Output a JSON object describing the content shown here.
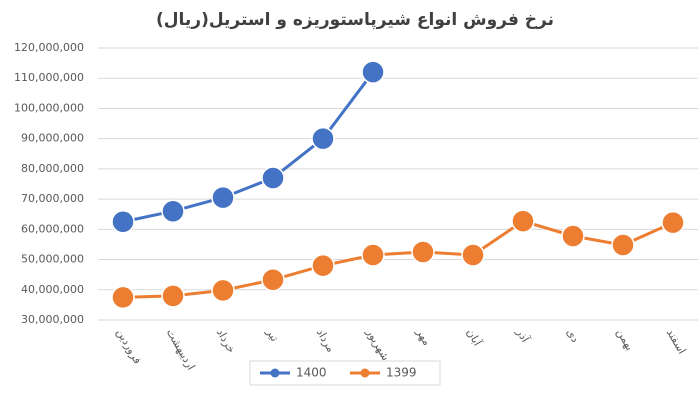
{
  "chart_data": {
    "type": "line",
    "title": "نرخ فروش انواع شیرپاستوریزه و استریل(ریال)",
    "categories": [
      "فروردین",
      "اردیبهشت",
      "خرداد",
      "تیر",
      "مرداد",
      "شهریور",
      "مهر",
      "آبان",
      "آذر",
      "دی",
      "بهمن",
      "اسفند"
    ],
    "series": [
      {
        "name": "1400",
        "color": "#4472c4",
        "values": [
          62500000,
          66000000,
          70500000,
          77000000,
          90000000,
          112000000,
          null,
          null,
          null,
          null,
          null,
          null
        ]
      },
      {
        "name": "1399",
        "color": "#ed7d31",
        "values": [
          37500000,
          38000000,
          39800000,
          43300000,
          48000000,
          51500000,
          52500000,
          51500000,
          62700000,
          57800000,
          54800000,
          62200000
        ]
      }
    ],
    "ylim": [
      30000000,
      120000000
    ],
    "yticks": [
      {
        "value": 30000000,
        "label": "30,000,000"
      },
      {
        "value": 40000000,
        "label": "40,000,000"
      },
      {
        "value": 50000000,
        "label": "50,000,000"
      },
      {
        "value": 60000000,
        "label": "60,000,000"
      },
      {
        "value": 70000000,
        "label": "70,000,000"
      },
      {
        "value": 80000000,
        "label": "80,000,000"
      },
      {
        "value": 90000000,
        "label": "90,000,000"
      },
      {
        "value": 100000000,
        "label": "100,000,000"
      },
      {
        "value": 110000000,
        "label": "110,000,000"
      },
      {
        "value": 120000000,
        "label": "120,000,000"
      }
    ],
    "grid": true,
    "legend": "bottom"
  }
}
